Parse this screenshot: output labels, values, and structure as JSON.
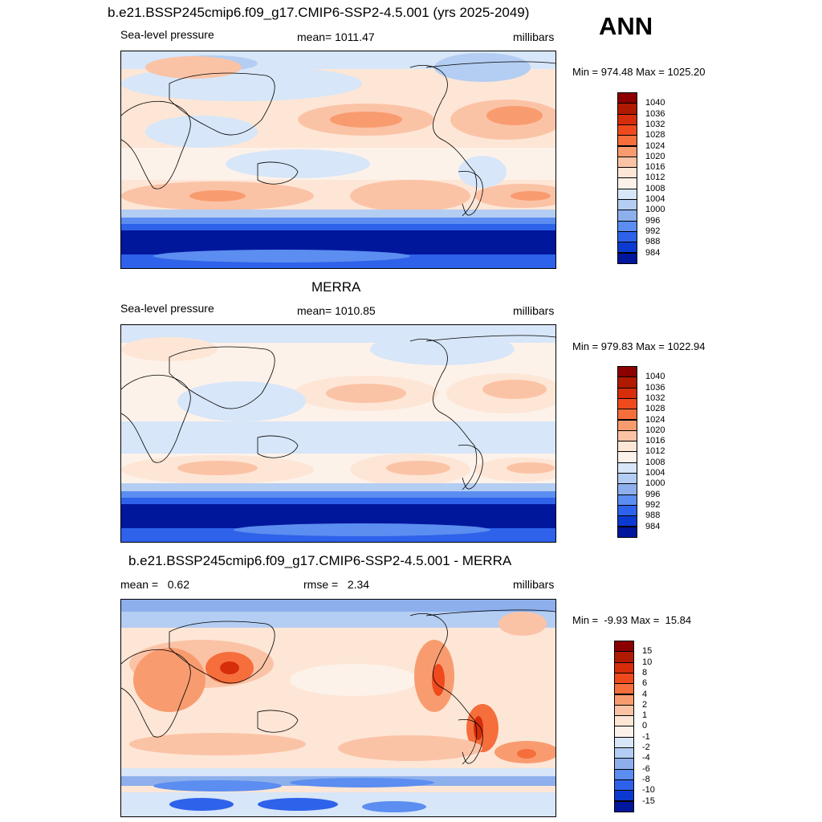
{
  "season": "ANN",
  "panels": [
    {
      "title": "b.e21.BSSP245cmip6.f09_g17.CMIP6-SSP2-4.5.001 (yrs 2025-2049)",
      "left_label": "Sea-level pressure",
      "center_label": "mean= 1011.47",
      "right_label": "millibars",
      "minmax": "Min = 974.48 Max = 1025.20",
      "colorbar": {
        "labels": [
          "1040",
          "1036",
          "1032",
          "1028",
          "1024",
          "1020",
          "1016",
          "1012",
          "1008",
          "1004",
          "1000",
          "996",
          "992",
          "988",
          "984"
        ],
        "colors": [
          "#8b0000",
          "#b01a00",
          "#d62d0b",
          "#ef4a1e",
          "#f56e3c",
          "#f89c70",
          "#fbc3a6",
          "#fde6d6",
          "#fdf2ea",
          "#d7e6f8",
          "#b4cdf2",
          "#8db0ec",
          "#5c8df0",
          "#2e62ea",
          "#0c3ad0",
          "#00179c"
        ]
      }
    },
    {
      "title": "MERRA",
      "left_label": "Sea-level pressure",
      "center_label": "mean= 1010.85",
      "right_label": "millibars",
      "minmax": "Min = 979.83 Max = 1022.94",
      "colorbar": {
        "labels": [
          "1040",
          "1036",
          "1032",
          "1028",
          "1024",
          "1020",
          "1016",
          "1012",
          "1008",
          "1004",
          "1000",
          "996",
          "992",
          "988",
          "984"
        ],
        "colors": [
          "#8b0000",
          "#b01a00",
          "#d62d0b",
          "#ef4a1e",
          "#f56e3c",
          "#f89c70",
          "#fbc3a6",
          "#fde6d6",
          "#fdf2ea",
          "#d7e6f8",
          "#b4cdf2",
          "#8db0ec",
          "#5c8df0",
          "#2e62ea",
          "#0c3ad0",
          "#00179c"
        ]
      }
    },
    {
      "title": "b.e21.BSSP245cmip6.f09_g17.CMIP6-SSP2-4.5.001 - MERRA",
      "left_label": "mean =   0.62",
      "center_label": "rmse =   2.34",
      "right_label": "millibars",
      "minmax": "Min =  -9.93 Max =  15.84",
      "colorbar": {
        "labels": [
          "15",
          "10",
          "8",
          "6",
          "4",
          "2",
          "1",
          "0",
          "-1",
          "-2",
          "-4",
          "-6",
          "-8",
          "-10",
          "-15"
        ],
        "colors": [
          "#8b0000",
          "#b01a00",
          "#d62d0b",
          "#ef4a1e",
          "#f56e3c",
          "#f89c70",
          "#fbc3a6",
          "#fde6d6",
          "#fdf2ea",
          "#d7e6f8",
          "#b4cdf2",
          "#8db0ec",
          "#5c8df0",
          "#2e62ea",
          "#0c3ad0",
          "#00179c"
        ]
      }
    }
  ]
}
